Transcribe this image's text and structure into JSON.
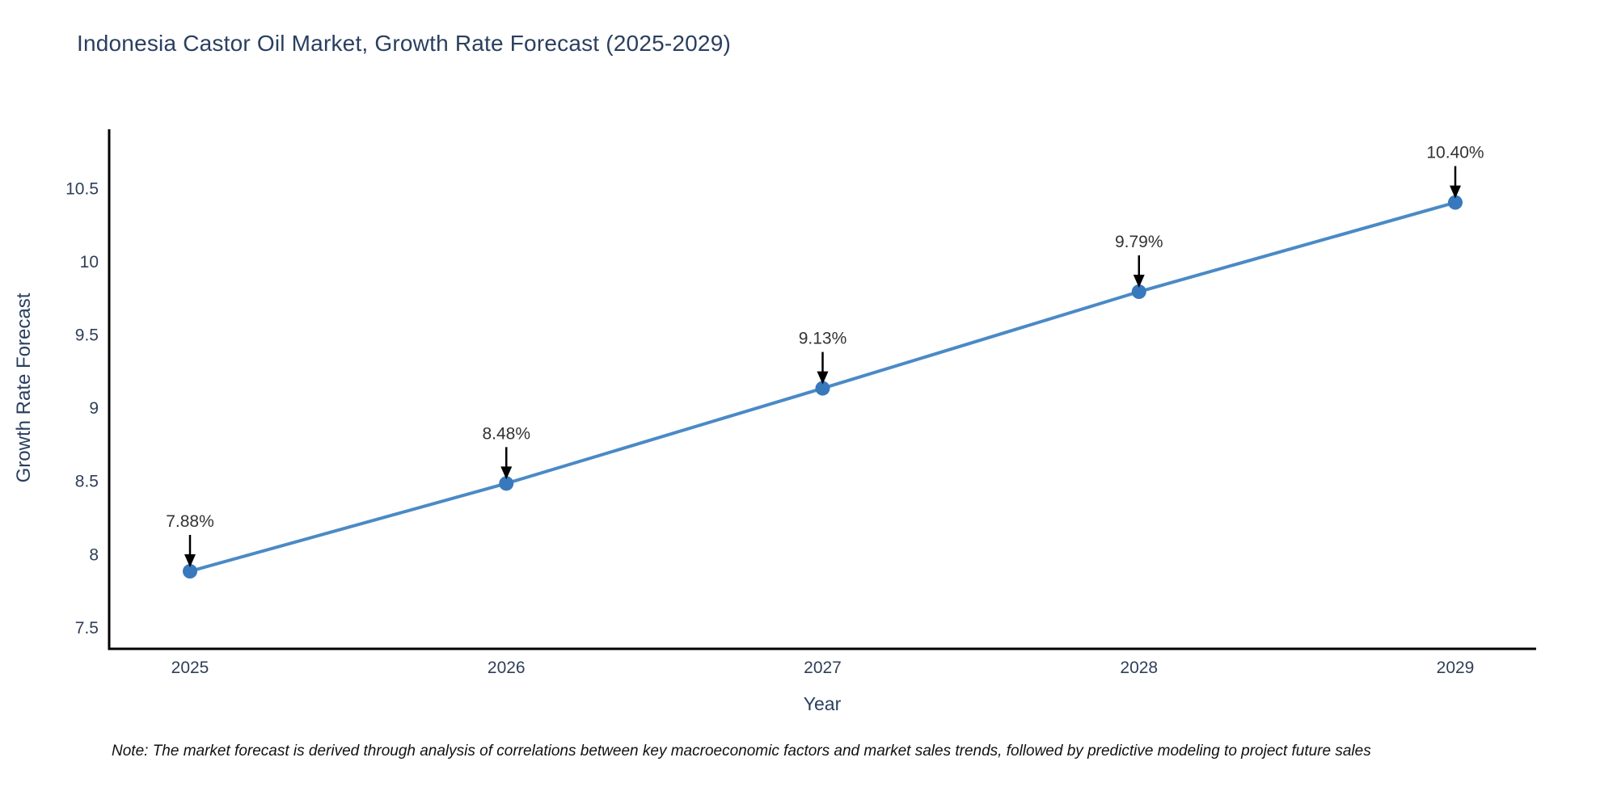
{
  "title": {
    "text": "Indonesia Castor Oil Market, Growth Rate Forecast (2025-2029)",
    "color": "#2a3f5f"
  },
  "note": {
    "text": "Note: The market forecast is derived through analysis of correlations between key macroeconomic factors and market sales trends, followed by predictive modeling to project future sales"
  },
  "chart_data": {
    "type": "line",
    "title": "Indonesia Castor Oil Market, Growth Rate Forecast (2025-2029)",
    "x": [
      2025,
      2026,
      2027,
      2028,
      2029
    ],
    "x_ticks": [
      "2025",
      "2026",
      "2027",
      "2028",
      "2029"
    ],
    "series": [
      {
        "name": "Growth Rate Forecast",
        "values": [
          7.88,
          8.48,
          9.13,
          9.79,
          10.4
        ]
      }
    ],
    "point_labels": [
      "7.88%",
      "8.48%",
      "9.13%",
      "9.79%",
      "10.40%"
    ],
    "xlabel": "Year",
    "ylabel": "Growth Rate Forecast",
    "y_ticks": [
      7.5,
      8,
      8.5,
      9,
      9.5,
      10,
      10.5
    ],
    "ylim": [
      7.35,
      10.9
    ],
    "grid": false,
    "legend": "none",
    "colors": {
      "line": "#4a8ac6",
      "marker": "#3779bc",
      "axis": "#000000",
      "tick_label": "#2f3f58",
      "annotation_text": "#333333",
      "annotation_arrow": "#000000"
    }
  }
}
